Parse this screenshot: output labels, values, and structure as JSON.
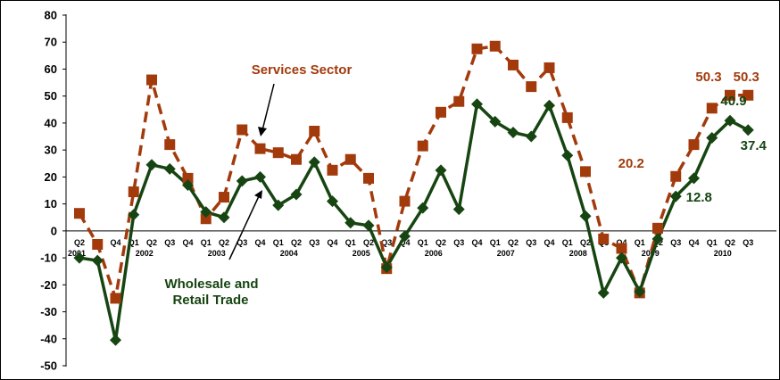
{
  "chart_data": {
    "type": "line",
    "title": "",
    "xlabel": "",
    "ylabel": "",
    "ylim": [
      -50,
      80
    ],
    "yticks": [
      80,
      70,
      60,
      50,
      40,
      30,
      20,
      10,
      0,
      -10,
      -20,
      -30,
      -40,
      -50
    ],
    "grid": false,
    "quarter_labels": [
      "Q2",
      "Q3",
      "Q4",
      "Q1",
      "Q2",
      "Q3",
      "Q4",
      "Q1",
      "Q2",
      "Q3",
      "Q4",
      "Q1",
      "Q2",
      "Q3",
      "Q4",
      "Q1",
      "Q2",
      "Q3",
      "Q4",
      "Q1",
      "Q2",
      "Q3",
      "Q4",
      "Q1",
      "Q2",
      "Q3",
      "Q4",
      "Q1",
      "Q2",
      "Q3",
      "Q4",
      "Q1",
      "Q2",
      "Q3",
      "Q4",
      "Q1",
      "Q2",
      "Q3"
    ],
    "year_labels": [
      {
        "year": "2001",
        "index": 0
      },
      {
        "year": "2002",
        "index": 3
      },
      {
        "year": "2003",
        "index": 7
      },
      {
        "year": "2004",
        "index": 11
      },
      {
        "year": "2005",
        "index": 15
      },
      {
        "year": "2006",
        "index": 19
      },
      {
        "year": "2007",
        "index": 23
      },
      {
        "year": "2008",
        "index": 27
      },
      {
        "year": "2009",
        "index": 31
      },
      {
        "year": "2010",
        "index": 35
      }
    ],
    "series": [
      {
        "name": "Services Sector",
        "color": "#a33a0c",
        "style": "dashed",
        "marker": "square",
        "values": [
          6.5,
          -5,
          -25,
          14.5,
          56,
          32,
          19.5,
          4.5,
          12.5,
          37.5,
          30.5,
          29,
          26.5,
          37,
          22.5,
          26.5,
          19.5,
          -14,
          11,
          31.5,
          44,
          48,
          67.5,
          68.5,
          61.5,
          53.5,
          60.5,
          42,
          22,
          -3,
          -6.5,
          -23,
          1,
          20.2,
          32,
          45.5,
          50.3,
          50.3
        ]
      },
      {
        "name": "Wholesale and Retail Trade",
        "color": "#164512",
        "style": "solid",
        "marker": "diamond",
        "values": [
          -10,
          -11,
          -40.5,
          6,
          24.5,
          23,
          17,
          7,
          5,
          18.5,
          20,
          9.5,
          13.5,
          25.5,
          11,
          3,
          2,
          -13.5,
          -2,
          8.5,
          22.5,
          8,
          47,
          40.5,
          36.5,
          35,
          46.5,
          28,
          5.5,
          -23,
          -10,
          -22.5,
          -3,
          12.8,
          19.5,
          34.5,
          40.9,
          37.4
        ]
      }
    ],
    "annotations": [
      {
        "text": "50.3",
        "series": 0,
        "index": 36,
        "color": "#a33a0c"
      },
      {
        "text": "50.3",
        "series": 0,
        "index": 37,
        "color": "#a33a0c"
      },
      {
        "text": "20.2",
        "series": 0,
        "index": 33,
        "color": "#a33a0c"
      },
      {
        "text": "40.9",
        "series": 1,
        "index": 36,
        "color": "#164512"
      },
      {
        "text": "37.4",
        "series": 1,
        "index": 37,
        "color": "#164512"
      },
      {
        "text": "12.8",
        "series": 1,
        "index": 33,
        "color": "#164512"
      }
    ],
    "series_labels": {
      "services": "Services Sector",
      "wholesale_line1": "Wholesale and",
      "wholesale_line2": "Retail Trade"
    }
  }
}
